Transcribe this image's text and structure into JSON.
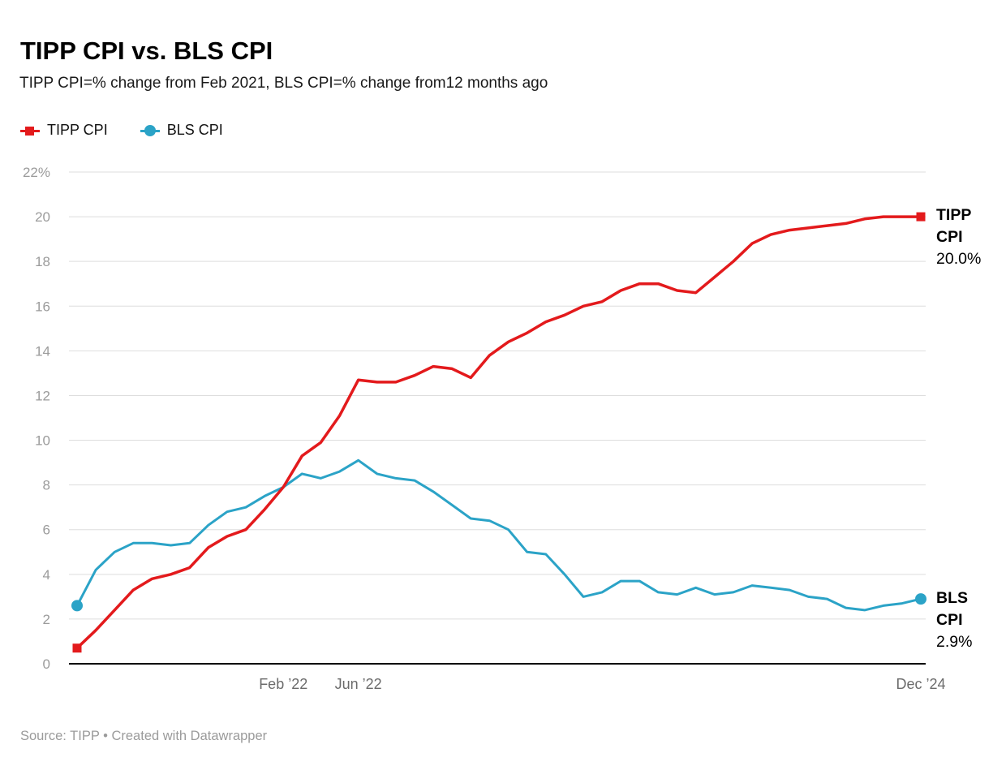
{
  "title": "TIPP CPI vs. BLS CPI",
  "subtitle": "TIPP CPI=% change from Feb 2021, BLS CPI=% change from12 months ago",
  "legend": [
    {
      "label": "TIPP CPI",
      "color": "#e31a1c",
      "marker": "square"
    },
    {
      "label": "BLS CPI",
      "color": "#2ba3c7",
      "marker": "circle"
    }
  ],
  "end_labels": {
    "tipp": {
      "name_line1": "TIPP",
      "name_line2": "CPI",
      "value": "20.0%"
    },
    "bls": {
      "name_line1": "BLS",
      "name_line2": "CPI",
      "value": "2.9%"
    }
  },
  "footer": "Source: TIPP • Created with Datawrapper",
  "chart_data": {
    "type": "line",
    "title": "TIPP CPI vs. BLS CPI",
    "xlabel": "",
    "ylabel": "",
    "ylim": [
      0,
      22
    ],
    "grid": true,
    "legend_position": "top-left",
    "x": [
      "2021-03",
      "2021-04",
      "2021-05",
      "2021-06",
      "2021-07",
      "2021-08",
      "2021-09",
      "2021-10",
      "2021-11",
      "2021-12",
      "2022-01",
      "2022-02",
      "2022-03",
      "2022-04",
      "2022-05",
      "2022-06",
      "2022-07",
      "2022-08",
      "2022-09",
      "2022-10",
      "2022-11",
      "2022-12",
      "2023-01",
      "2023-02",
      "2023-03",
      "2023-04",
      "2023-05",
      "2023-06",
      "2023-07",
      "2023-08",
      "2023-09",
      "2023-10",
      "2023-11",
      "2023-12",
      "2024-01",
      "2024-02",
      "2024-03",
      "2024-04",
      "2024-05",
      "2024-06",
      "2024-07",
      "2024-08",
      "2024-09",
      "2024-10",
      "2024-11",
      "2024-12"
    ],
    "series": [
      {
        "name": "TIPP CPI",
        "color": "#e31a1c",
        "marker": "square",
        "line_width": 3.5,
        "end_value_label": "20.0%",
        "values": [
          0.7,
          1.5,
          2.4,
          3.3,
          3.8,
          4.0,
          4.3,
          5.2,
          5.7,
          6.0,
          6.9,
          7.9,
          9.3,
          9.9,
          11.1,
          12.7,
          12.6,
          12.6,
          12.9,
          13.3,
          13.2,
          12.8,
          13.8,
          14.4,
          14.8,
          15.3,
          15.6,
          16.0,
          16.2,
          16.7,
          17.0,
          17.0,
          16.7,
          16.6,
          17.3,
          18.0,
          18.8,
          19.2,
          19.4,
          19.5,
          19.6,
          19.7,
          19.9,
          20.0,
          20.0,
          20.0
        ]
      },
      {
        "name": "BLS CPI",
        "color": "#2ba3c7",
        "marker": "circle",
        "line_width": 3,
        "end_value_label": "2.9%",
        "values": [
          2.6,
          4.2,
          5.0,
          5.4,
          5.4,
          5.3,
          5.4,
          6.2,
          6.8,
          7.0,
          7.5,
          7.9,
          8.5,
          8.3,
          8.6,
          9.1,
          8.5,
          8.3,
          8.2,
          7.7,
          7.1,
          6.5,
          6.4,
          6.0,
          5.0,
          4.9,
          4.0,
          3.0,
          3.2,
          3.7,
          3.7,
          3.2,
          3.1,
          3.4,
          3.1,
          3.2,
          3.5,
          3.4,
          3.3,
          3.0,
          2.9,
          2.5,
          2.4,
          2.6,
          2.7,
          2.9
        ]
      }
    ],
    "yticks": [
      {
        "value": 0,
        "label": "0"
      },
      {
        "value": 2,
        "label": "2"
      },
      {
        "value": 4,
        "label": "4"
      },
      {
        "value": 6,
        "label": "6"
      },
      {
        "value": 8,
        "label": "8"
      },
      {
        "value": 10,
        "label": "10"
      },
      {
        "value": 12,
        "label": "12"
      },
      {
        "value": 14,
        "label": "14"
      },
      {
        "value": 16,
        "label": "16"
      },
      {
        "value": 18,
        "label": "18"
      },
      {
        "value": 20,
        "label": "20"
      },
      {
        "value": 22,
        "label": "22%"
      }
    ],
    "xticks": [
      {
        "index": 11,
        "label": "Feb ’22"
      },
      {
        "index": 15,
        "label": "Jun ’22"
      },
      {
        "index": 45,
        "label": "Dec ’24"
      }
    ],
    "colors": {
      "grid": "#dddddd",
      "axis": "#000000",
      "ytick": "#9b9b9b",
      "xtick": "#6b6b6b"
    }
  }
}
